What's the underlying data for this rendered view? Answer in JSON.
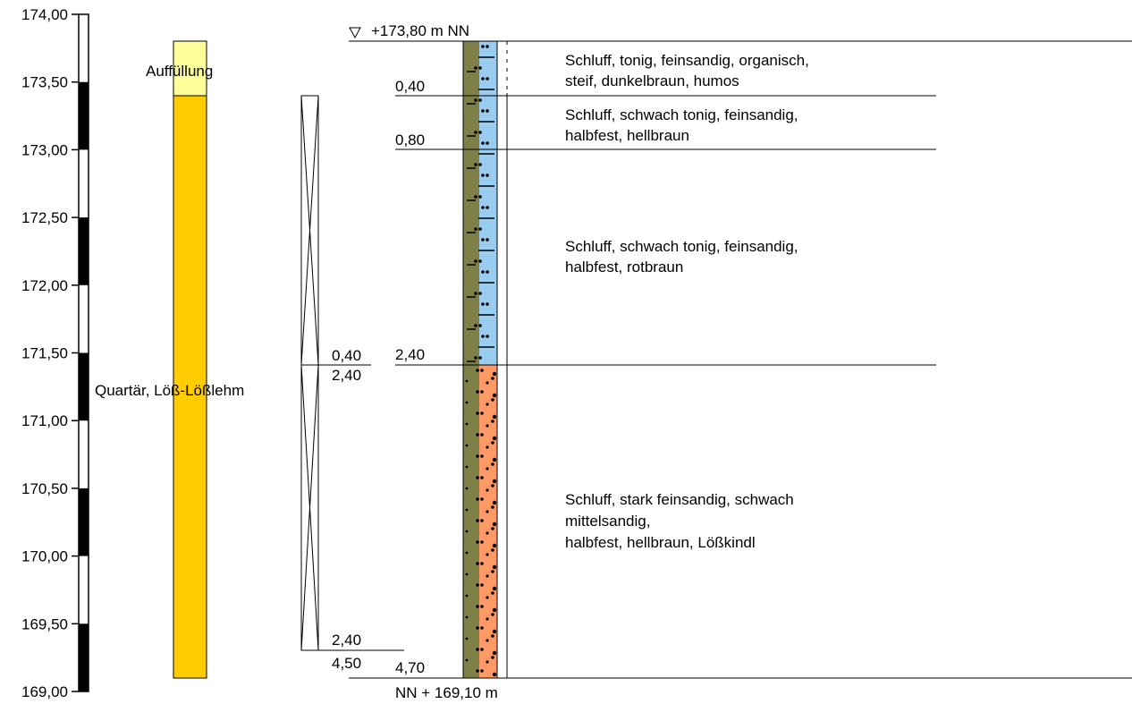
{
  "scale": {
    "ticks": [
      "174,00",
      "173,50",
      "173,00",
      "172,50",
      "172,00",
      "171,50",
      "171,00",
      "170,50",
      "170,00",
      "169,50",
      "169,00"
    ]
  },
  "stratigraphy": {
    "fill_label": "Auffüllung",
    "main_label": "Quartär, Löß-Lößlehm",
    "fill_color": "#ffff99",
    "main_color": "#ffcc00"
  },
  "sampling": {
    "labels": [
      "0,40",
      "2,40",
      "2,40",
      "4,50"
    ]
  },
  "profile": {
    "top_elevation": "∇ +173,80 m NN",
    "bottom_elevation": "NN + 169,10 m",
    "depth_labels": [
      "0,40",
      "0,80",
      "2,40",
      "4,70"
    ],
    "colors": {
      "strip": "#7f7f48",
      "silt": "#99ccee",
      "sand": "#ff9966"
    },
    "layers": [
      {
        "lines": [
          "Schluff, tonig, feinsandig, organisch,",
          "steif, dunkelbraun, humos"
        ]
      },
      {
        "lines": [
          "Schluff, schwach tonig, feinsandig,",
          "halbfest, hellbraun"
        ]
      },
      {
        "lines": [
          "Schluff, schwach tonig, feinsandig,",
          "halbfest, rotbraun"
        ]
      },
      {
        "lines": [
          "Schluff, stark feinsandig, schwach",
          "mittelsandig,",
          "halbfest, hellbraun, Lößkindl"
        ]
      }
    ]
  }
}
